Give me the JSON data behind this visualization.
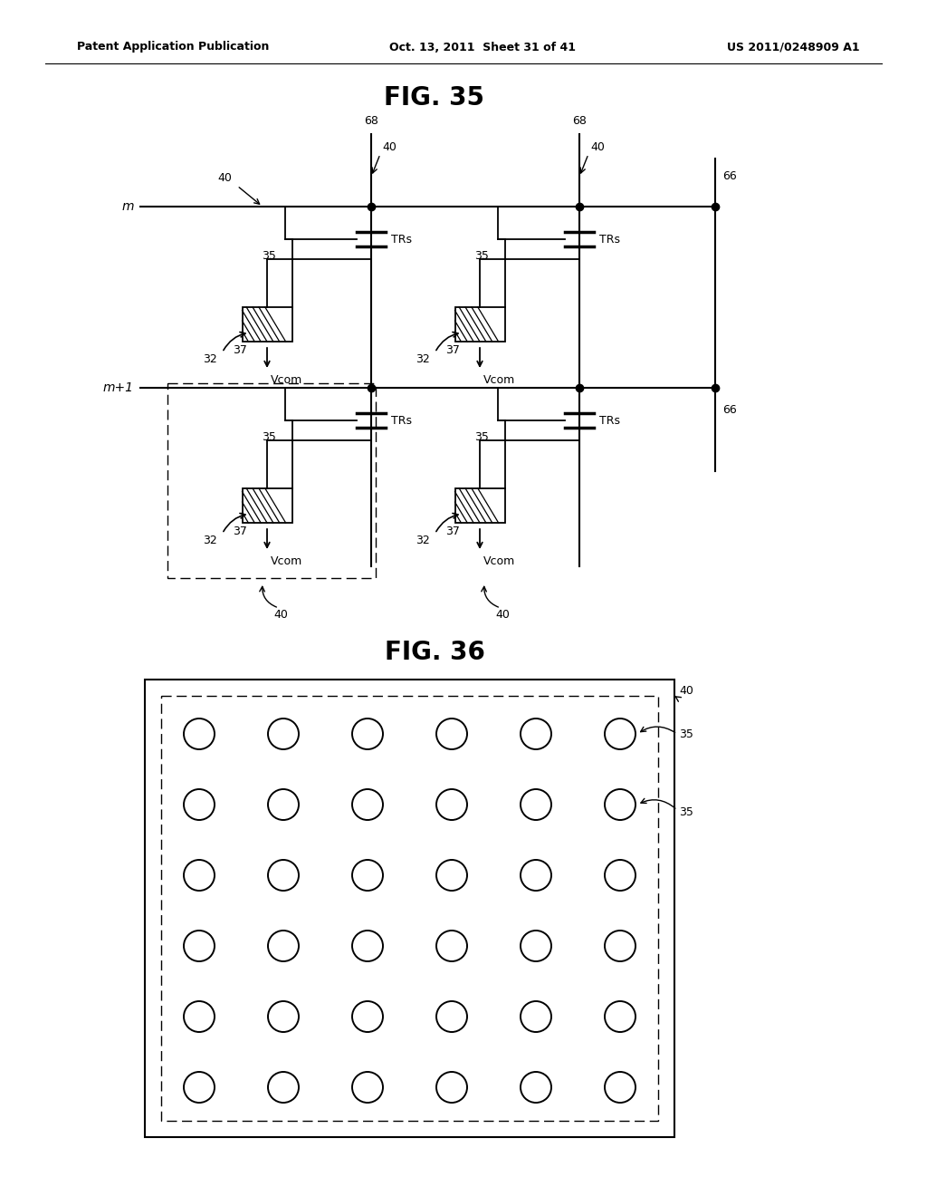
{
  "header_left": "Patent Application Publication",
  "header_mid": "Oct. 13, 2011  Sheet 31 of 41",
  "header_right": "US 2011/0248909 A1",
  "fig35_title": "FIG. 35",
  "fig36_title": "FIG. 36",
  "bg_color": "#ffffff",
  "line_color": "#000000"
}
